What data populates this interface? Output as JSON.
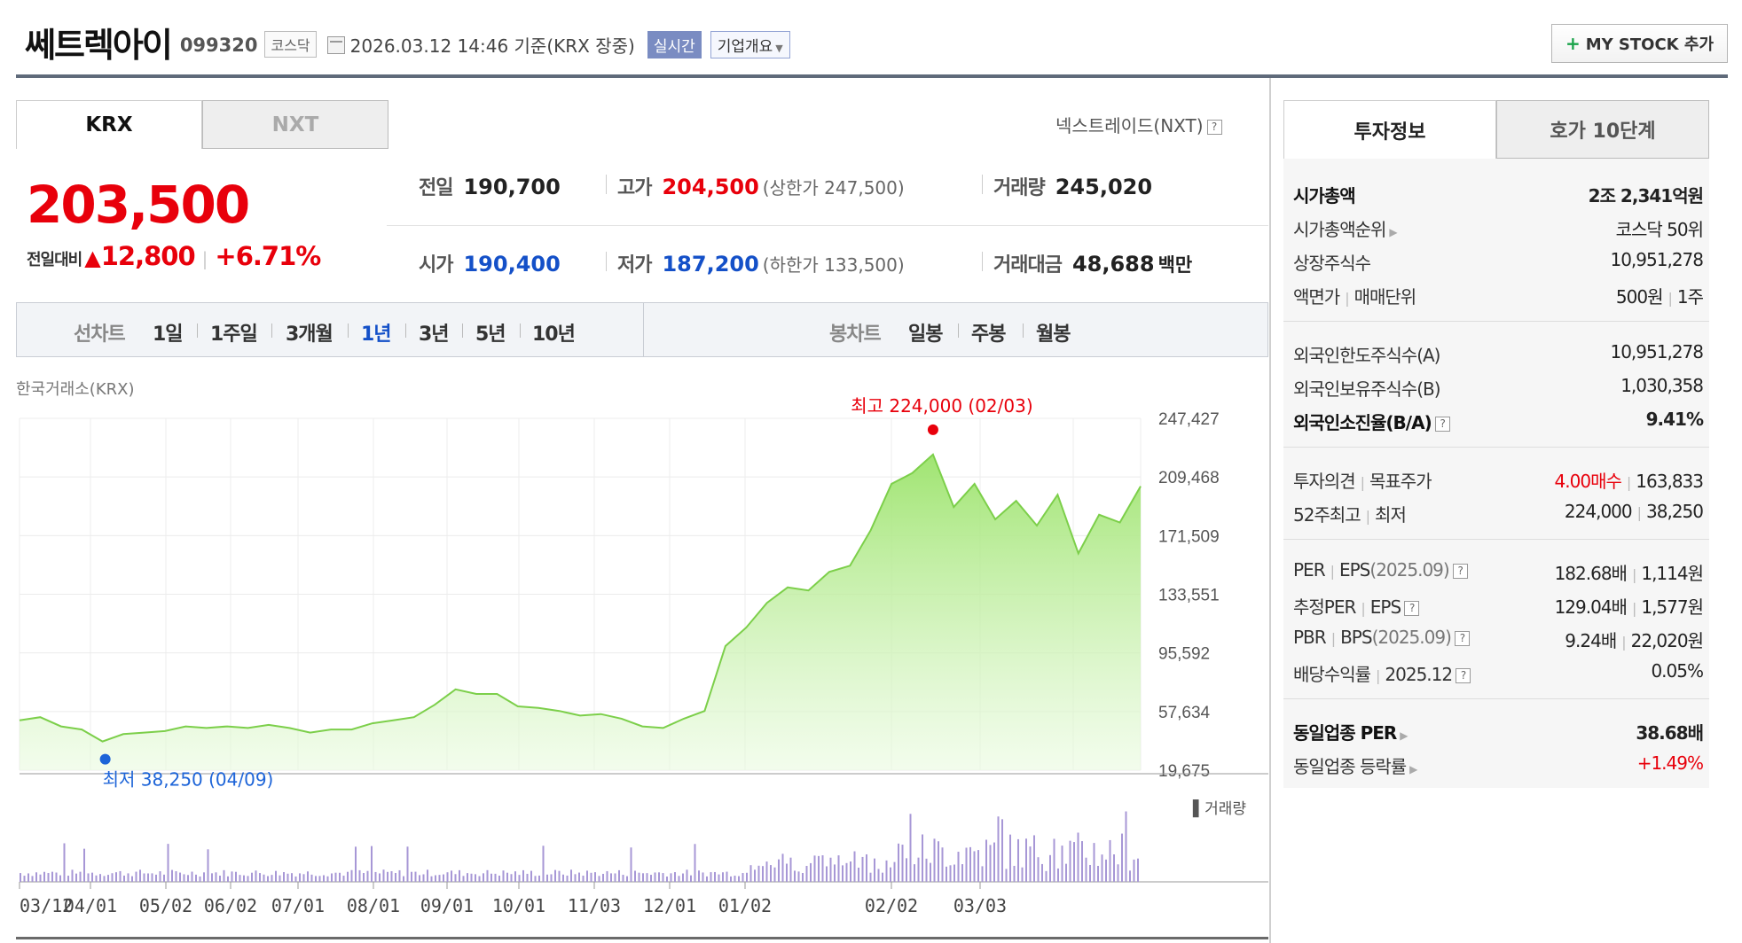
{
  "header": {
    "stock_name": "쎄트렉아이",
    "stock_code": "099320",
    "market": "코스닥",
    "timestamp": "2026.03.12 14:46",
    "basis": "기준(KRX 장중)",
    "realtime_label": "실시간",
    "company_overview_label": "기업개요",
    "mystock_label": "MY STOCK 추가"
  },
  "market_tabs": {
    "krx": "KRX",
    "nxt": "NXT",
    "nxt_link": "넥스트레이드(NXT)"
  },
  "price": {
    "current": "203,500",
    "change_label": "전일대비",
    "change_amount": "12,800",
    "change_pct": "+6.71%"
  },
  "quote": {
    "prev_close_label": "전일",
    "prev_close": "190,700",
    "high_label": "고가",
    "high": "204,500",
    "upper_limit": "(상한가 247,500)",
    "volume_label": "거래량",
    "volume": "245,020",
    "open_label": "시가",
    "open": "190,400",
    "low_label": "저가",
    "low": "187,200",
    "lower_limit": "(하한가 133,500)",
    "value_label": "거래대금",
    "value": "48,688",
    "value_unit": "백만"
  },
  "periods": {
    "line_chart_label": "선차트",
    "line_items": [
      "1일",
      "1주일",
      "3개월",
      "1년",
      "3년",
      "5년",
      "10년"
    ],
    "selected": "1년",
    "candle_chart_label": "봉차트",
    "candle_items": [
      "일봉",
      "주봉",
      "월봉"
    ]
  },
  "exchange_label": "한국거래소(KRX)",
  "chart_data": {
    "type": "area",
    "y_ticks": [
      "247,427",
      "209,468",
      "171,509",
      "133,551",
      "95,592",
      "57,634",
      "19,675"
    ],
    "ylim": [
      19675,
      247427
    ],
    "x_ticks": [
      "03/12",
      "04/01",
      "05/02",
      "06/02",
      "07/01",
      "08/01",
      "09/01",
      "10/01",
      "11/03",
      "12/01",
      "01/02",
      "02/02",
      "03/03"
    ],
    "max_annotation": "최고 224,000 (02/03)",
    "min_annotation": "최저 38,250 (04/09)",
    "volume_legend": "거래량",
    "color": "#7ccf4a",
    "series": [
      {
        "x": "03/12",
        "y": 52000
      },
      {
        "x": "03/20",
        "y": 54000
      },
      {
        "x": "03/28",
        "y": 48000
      },
      {
        "x": "04/01",
        "y": 46000
      },
      {
        "x": "04/09",
        "y": 38250
      },
      {
        "x": "04/16",
        "y": 43000
      },
      {
        "x": "04/25",
        "y": 44000
      },
      {
        "x": "05/02",
        "y": 45000
      },
      {
        "x": "05/12",
        "y": 48000
      },
      {
        "x": "05/22",
        "y": 47000
      },
      {
        "x": "06/02",
        "y": 48000
      },
      {
        "x": "06/12",
        "y": 47000
      },
      {
        "x": "06/20",
        "y": 49000
      },
      {
        "x": "07/01",
        "y": 47000
      },
      {
        "x": "07/10",
        "y": 44000
      },
      {
        "x": "07/20",
        "y": 46000
      },
      {
        "x": "08/01",
        "y": 46000
      },
      {
        "x": "08/10",
        "y": 50000
      },
      {
        "x": "08/20",
        "y": 52000
      },
      {
        "x": "09/01",
        "y": 54000
      },
      {
        "x": "09/08",
        "y": 62000
      },
      {
        "x": "09/15",
        "y": 72000
      },
      {
        "x": "09/22",
        "y": 69000
      },
      {
        "x": "10/01",
        "y": 69000
      },
      {
        "x": "10/10",
        "y": 61000
      },
      {
        "x": "10/20",
        "y": 60000
      },
      {
        "x": "11/03",
        "y": 58000
      },
      {
        "x": "11/12",
        "y": 55000
      },
      {
        "x": "11/20",
        "y": 56000
      },
      {
        "x": "11/28",
        "y": 53000
      },
      {
        "x": "12/01",
        "y": 48000
      },
      {
        "x": "12/08",
        "y": 47000
      },
      {
        "x": "12/15",
        "y": 53000
      },
      {
        "x": "12/22",
        "y": 58000
      },
      {
        "x": "12/29",
        "y": 100000
      },
      {
        "x": "01/02",
        "y": 112000
      },
      {
        "x": "01/07",
        "y": 128000
      },
      {
        "x": "01/12",
        "y": 138000
      },
      {
        "x": "01/16",
        "y": 136000
      },
      {
        "x": "01/20",
        "y": 148000
      },
      {
        "x": "01/24",
        "y": 152000
      },
      {
        "x": "01/28",
        "y": 175000
      },
      {
        "x": "01/31",
        "y": 205000
      },
      {
        "x": "02/02",
        "y": 212000
      },
      {
        "x": "02/03",
        "y": 224000
      },
      {
        "x": "02/06",
        "y": 190000
      },
      {
        "x": "02/10",
        "y": 205000
      },
      {
        "x": "02/14",
        "y": 182000
      },
      {
        "x": "02/18",
        "y": 194000
      },
      {
        "x": "02/22",
        "y": 178000
      },
      {
        "x": "02/26",
        "y": 198000
      },
      {
        "x": "03/03",
        "y": 160000
      },
      {
        "x": "03/06",
        "y": 185000
      },
      {
        "x": "03/09",
        "y": 180000
      },
      {
        "x": "03/12",
        "y": 203500
      }
    ]
  },
  "right_tabs": {
    "investment": "투자정보",
    "orderbook": "호가 10단계"
  },
  "investment_info": {
    "market_cap_label": "시가총액",
    "market_cap": "2조 2,341억원",
    "market_cap_rank_label": "시가총액순위",
    "market_cap_rank": "코스닥 50위",
    "listed_shares_label": "상장주식수",
    "listed_shares": "10,951,278",
    "par_label": "액면가",
    "trade_unit_label": "매매단위",
    "par": "500원",
    "trade_unit": "1주",
    "foreign_limit_label": "외국인한도주식수(A)",
    "foreign_limit": "10,951,278",
    "foreign_hold_label": "외국인보유주식수(B)",
    "foreign_hold": "1,030,358",
    "foreign_ratio_label": "외국인소진율(B/A)",
    "foreign_ratio": "9.41%",
    "opinion_label": "투자의견",
    "target_label": "목표주가",
    "opinion": "4.00매수",
    "target": "163,833",
    "w52_label": "52주최고",
    "w52_low_label": "최저",
    "w52_high": "224,000",
    "w52_low": "38,250",
    "per_label": "PER",
    "eps_label": "EPS",
    "eps_period": "(2025.09)",
    "per": "182.68배",
    "eps": "1,114원",
    "est_per_label": "추정PER",
    "est_eps_label": "EPS",
    "est_per": "129.04배",
    "est_eps": "1,577원",
    "pbr_label": "PBR",
    "bps_label": "BPS",
    "bps_period": "(2025.09)",
    "pbr": "9.24배",
    "bps": "22,020원",
    "div_label": "배당수익률",
    "div_period": "2025.12",
    "div": "0.05%",
    "ind_per_label": "동일업종 PER",
    "ind_per": "38.68배",
    "ind_chg_label": "동일업종 등락률",
    "ind_chg": "+1.49%"
  }
}
